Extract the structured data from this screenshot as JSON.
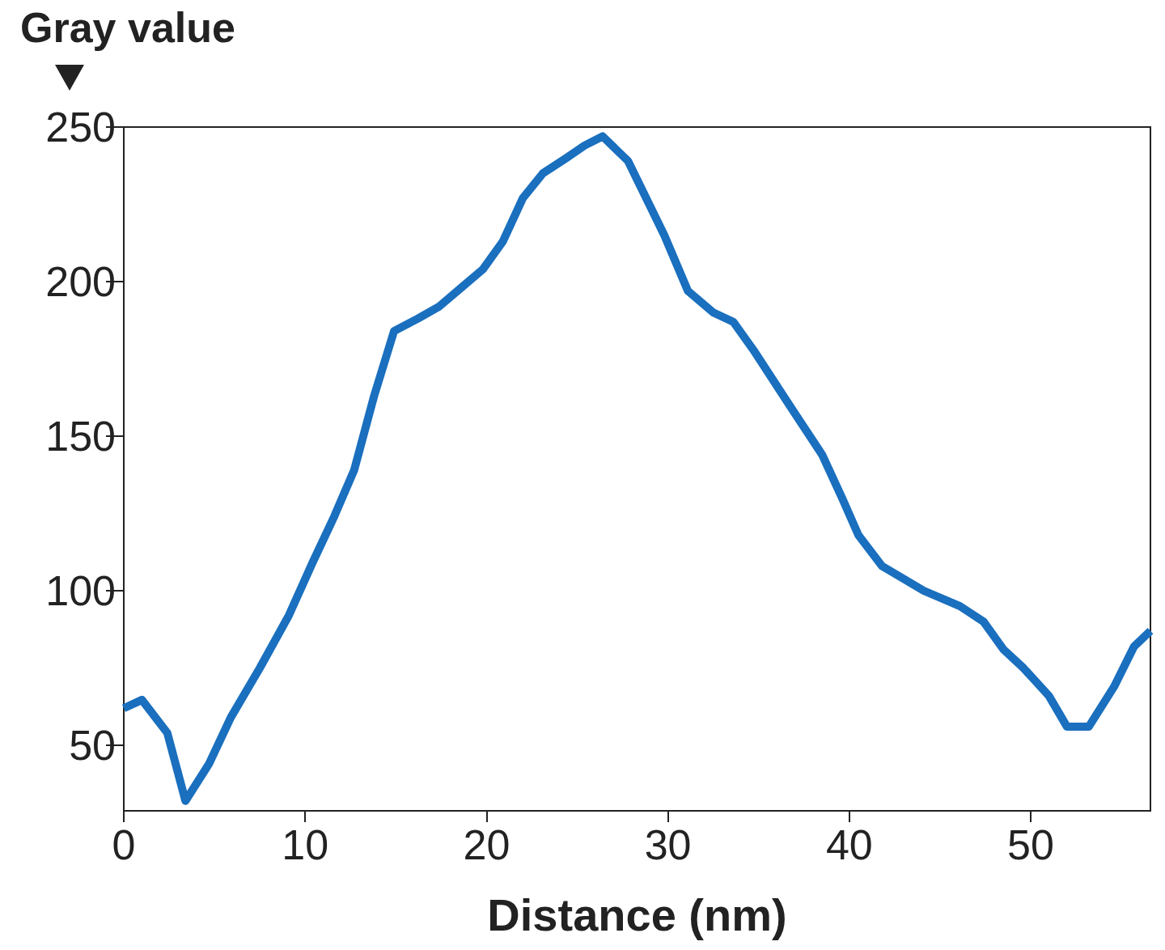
{
  "chart_data": {
    "type": "line",
    "x_label": "Distance (nm)",
    "y_label": "Gray value",
    "x": [
      0,
      1.0,
      2.4,
      3.4,
      4.7,
      5.9,
      7.5,
      9.1,
      10.4,
      11.6,
      12.7,
      13.8,
      14.9,
      16.2,
      17.4,
      18.6,
      19.8,
      20.9,
      22.0,
      23.1,
      24.4,
      25.4,
      26.4,
      27.8,
      29.8,
      31.1,
      32.5,
      33.6,
      34.7,
      36.7,
      38.5,
      39.6,
      40.5,
      41.8,
      44.1,
      46.1,
      47.4,
      48.5,
      49.6,
      51.0,
      52.0,
      53.2,
      54.6,
      55.7,
      56.6
    ],
    "values": [
      62,
      64.7,
      54,
      32,
      44,
      59,
      75,
      92,
      109,
      124,
      139,
      163,
      184,
      188,
      192,
      198,
      204,
      213,
      227,
      235,
      240,
      244,
      247,
      239,
      215,
      197,
      190,
      187,
      178,
      160,
      144,
      130,
      118,
      108,
      100,
      95,
      90,
      81,
      75,
      66,
      56,
      56,
      69,
      82,
      87
    ],
    "color": "#1a6fbe",
    "xlim": [
      0,
      56.6
    ],
    "ylim": [
      28.8,
      250
    ],
    "xticks": [
      0,
      10,
      20,
      30,
      40,
      50
    ],
    "yticks": [
      50,
      100,
      150,
      200,
      250
    ],
    "grid": false
  }
}
